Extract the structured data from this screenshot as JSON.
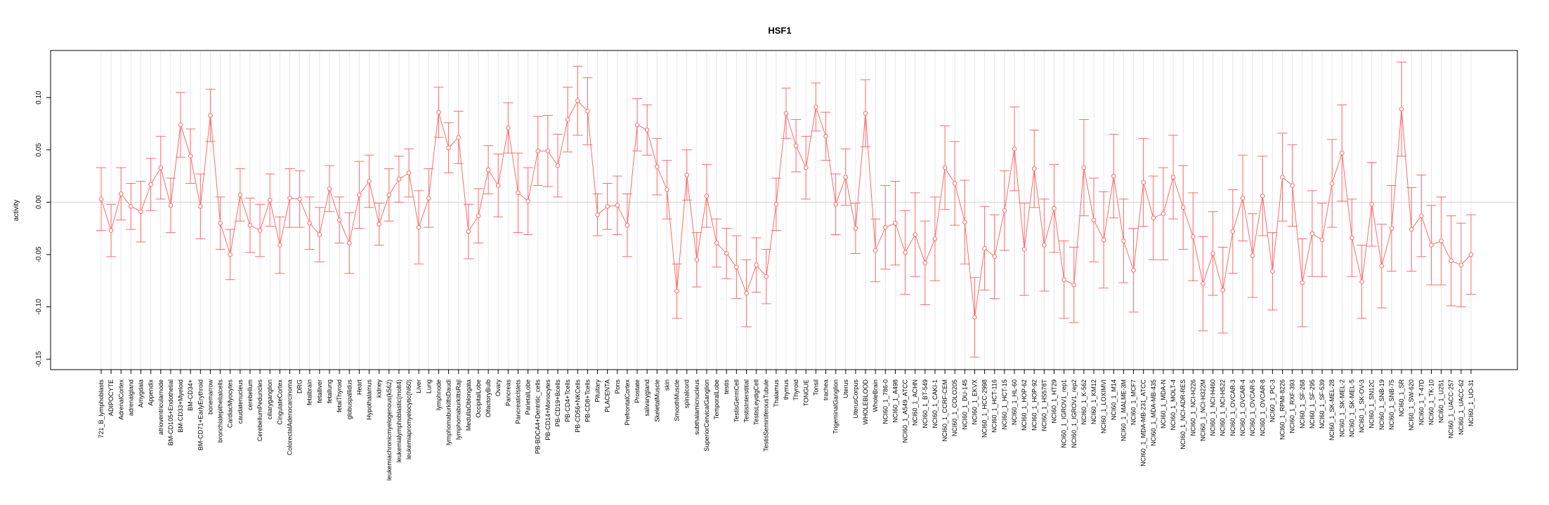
{
  "chart_data": {
    "type": "line",
    "title": "HSF1",
    "xlabel": "",
    "ylabel": "activity",
    "ylim": [
      -0.16,
      0.145
    ],
    "yticks": [
      -0.15,
      -0.1,
      -0.05,
      0.0,
      0.05,
      0.1
    ],
    "ytick_labels": [
      "-0.15",
      "-0.10",
      "-0.05",
      "0.00",
      "0.05",
      "0.10"
    ],
    "reference_line": 0.0,
    "grid": true,
    "series_color": "#ff6a6a",
    "categories": [
      "721_B_lymphoblasts",
      "ADIPOCYTE",
      "AdrenalCortex",
      "adrenalgland",
      "Amygdala",
      "Appendix",
      "atrioventricularnode",
      "BM-CD105+Endothelial",
      "BM-CD33+Myeloid",
      "BM-CD34+",
      "BM-CD71+EarlyErythroid",
      "bonemarrow",
      "bronchialepithelialcells",
      "CardiacMyocytes",
      "caudatenucleus",
      "cerebellum",
      "CerebellumPeduncles",
      "ciliaryganglion",
      "CingulateCortex",
      "ColorectalAdenocarcinoma",
      "DRG",
      "fetalbrain",
      "fetalliver",
      "fetallung",
      "fetalThyroid",
      "globuspallidus",
      "Heart",
      "Hypothalamus",
      "kidney",
      "leukemiachronicmyelogenous(k562)",
      "leukemialymphoblastic(molt4)",
      "leukemiapromyelocytic(hl60)",
      "Liver",
      "Lung",
      "lymphnode",
      "lymphomaburkittsDaudi",
      "lymphomaburkittsRaji",
      "MedullaOblongata",
      "OccipitalLobe",
      "OlfactoryBulb",
      "Ovary",
      "Pancreas",
      "PancreaticIslets",
      "ParietalLobe",
      "PB-BDCA4+Dentritic_cells",
      "PB-CD14+Monocytes",
      "PB-CD19+Bcells",
      "PB-CD4+Tcells",
      "PB-CD56+NKCells",
      "PB-CD8+Tcells",
      "Pituitary",
      "PLACENTA",
      "Pons",
      "PrefrontalCortex",
      "Prostate",
      "salivarygland",
      "SkeletalMuscle",
      "skin",
      "SmoothMuscle",
      "spinalcord",
      "subthalamicnucleus",
      "SuperiorCervicalGanglion",
      "TemporalLobe",
      "testis",
      "TestisGermCell",
      "TestisInterstitial",
      "TestisLeydigCell",
      "TestisSeminiferousTubule",
      "Thalamus",
      "thymus",
      "Thyroid",
      "TONGUE",
      "Tonsil",
      "trachea",
      "TrigeminalGanglion",
      "Uterus",
      "UterusCorpus",
      "WHOLEBLOOD",
      "WholeBrain",
      "NCI60_1_786-0",
      "NCI60_1_A498",
      "NCI60_1_A549_ATCC",
      "NCI60_1_ACHN",
      "NCI60_1_BT-549",
      "NCI60_1_CAKI-1",
      "NCI60_1_CCRF-CEM",
      "NCI60_1_COLO205",
      "NCI60_1_DU-145",
      "NCI60_1_EKVX",
      "NCI60_1_HCC-2998",
      "NCI60_1_HCT-116",
      "NCI60_1_HCT-15",
      "NCI60_1_HL-60",
      "NCI60_1_HOP-62",
      "NCI60_1_HOP-92",
      "NCI60_1_HS578T",
      "NCI60_1_HT29",
      "NCI60_1_IGROV1_rep1",
      "NCI60_1_IGROV1_rep2",
      "NCI60_1_K-562",
      "NCI60_1_KM12",
      "NCI60_1_LOXIMVI",
      "NCI60_1_M14",
      "NCI60_1_MALME-3M",
      "NCI60_1_MCF7",
      "NCI60_1_MDA-MB-231_ATCC",
      "NCI60_1_MDA-MB-435",
      "NCI60_1_MDA-N",
      "NCI60_1_MOLT-4",
      "NCI60_1_NCI-ADR-RES",
      "NCI60_1_NCI-H226",
      "NCI60_1_NCI-H322M",
      "NCI60_1_NCI-H460",
      "NCI60_1_NCI-H522",
      "NCI60_1_OVCAR-3",
      "NCI60_1_OVCAR-4",
      "NCI60_1_OVCAR-5",
      "NCI60_1_OVCAR-8",
      "NCI60_1_PC-3",
      "NCI60_1_RPMI-8226",
      "NCI60_1_RXF-393",
      "NCI60_1_SF-268",
      "NCI60_1_SF-295",
      "NCI60_1_SF-539",
      "NCI60_1_SK-MEL-28",
      "NCI60_1_SK-MEL-2",
      "NCI60_1_SK-MEL-5",
      "NCI60_1_SK-OV-3",
      "NCI60_1_SN12C",
      "NCI60_1_SNB-19",
      "NCI60_1_SNB-75",
      "NCI60_1_SR",
      "NCI60_1_SW-620",
      "NCI60_1_T-47D",
      "NCI60_1_TK-10",
      "NCI60_1_U251",
      "NCI60_1_UACC-257",
      "NCI60_1_UACC-62",
      "NCI60_1_UO-31"
    ],
    "values": [
      0.003,
      -0.027,
      0.008,
      -0.004,
      -0.009,
      0.017,
      0.033,
      -0.003,
      0.074,
      0.044,
      -0.004,
      0.083,
      -0.02,
      -0.05,
      0.007,
      -0.022,
      -0.027,
      0.002,
      -0.041,
      0.004,
      0.003,
      -0.02,
      -0.031,
      0.013,
      -0.017,
      -0.039,
      0.007,
      0.02,
      -0.021,
      0.007,
      0.022,
      0.028,
      -0.024,
      0.004,
      0.086,
      0.052,
      0.062,
      -0.028,
      -0.013,
      0.031,
      0.016,
      0.071,
      0.009,
      0.001,
      0.049,
      0.049,
      0.035,
      0.079,
      0.097,
      0.087,
      -0.012,
      -0.004,
      -0.003,
      -0.022,
      0.074,
      0.069,
      0.034,
      0.012,
      -0.085,
      0.026,
      -0.055,
      0.006,
      -0.039,
      -0.049,
      -0.062,
      -0.087,
      -0.06,
      -0.071,
      -0.002,
      0.085,
      0.054,
      0.033,
      0.091,
      0.063,
      -0.002,
      0.024,
      -0.025,
      0.085,
      -0.046,
      -0.024,
      -0.02,
      -0.048,
      -0.031,
      -0.058,
      -0.035,
      0.033,
      0.018,
      -0.019,
      -0.11,
      -0.044,
      -0.052,
      -0.008,
      0.051,
      -0.045,
      0.032,
      -0.041,
      -0.006,
      -0.074,
      -0.079,
      0.033,
      -0.017,
      -0.036,
      0.025,
      -0.037,
      -0.065,
      0.019,
      -0.015,
      -0.011,
      0.024,
      -0.005,
      -0.033,
      -0.078,
      -0.049,
      -0.084,
      -0.028,
      0.004,
      -0.051,
      0.006,
      -0.066,
      0.024,
      0.016,
      -0.077,
      -0.03,
      -0.036,
      0.018,
      0.047,
      -0.034,
      -0.076,
      -0.002,
      -0.061,
      -0.025,
      0.089,
      -0.026,
      -0.013,
      -0.041,
      -0.037,
      -0.056,
      -0.06,
      -0.05
    ],
    "error": [
      0.03,
      0.025,
      0.025,
      0.022,
      0.029,
      0.025,
      0.03,
      0.026,
      0.031,
      0.026,
      0.031,
      0.025,
      0.025,
      0.024,
      0.025,
      0.026,
      0.025,
      0.025,
      0.027,
      0.028,
      0.027,
      0.025,
      0.026,
      0.022,
      0.022,
      0.029,
      0.032,
      0.025,
      0.02,
      0.025,
      0.022,
      0.023,
      0.035,
      0.028,
      0.024,
      0.024,
      0.025,
      0.026,
      0.026,
      0.023,
      0.03,
      0.024,
      0.038,
      0.032,
      0.033,
      0.034,
      0.03,
      0.031,
      0.033,
      0.032,
      0.02,
      0.022,
      0.028,
      0.03,
      0.025,
      0.024,
      0.027,
      0.028,
      0.026,
      0.024,
      0.026,
      0.03,
      0.023,
      0.024,
      0.03,
      0.032,
      0.026,
      0.026,
      0.025,
      0.024,
      0.025,
      0.03,
      0.023,
      0.023,
      0.029,
      0.027,
      0.024,
      0.032,
      0.03,
      0.04,
      0.04,
      0.04,
      0.04,
      0.04,
      0.04,
      0.04,
      0.04,
      0.04,
      0.038,
      0.04,
      0.04,
      0.038,
      0.04,
      0.044,
      0.037,
      0.044,
      0.042,
      0.037,
      0.036,
      0.046,
      0.04,
      0.046,
      0.04,
      0.04,
      0.04,
      0.042,
      0.04,
      0.044,
      0.04,
      0.04,
      0.042,
      0.045,
      0.04,
      0.041,
      0.04,
      0.041,
      0.04,
      0.038,
      0.037,
      0.042,
      0.039,
      0.042,
      0.041,
      0.035,
      0.042,
      0.046,
      0.037,
      0.035,
      0.04,
      0.04,
      0.041,
      0.045,
      0.04,
      0.039,
      0.038,
      0.042,
      0.043,
      0.04,
      0.038
    ]
  }
}
